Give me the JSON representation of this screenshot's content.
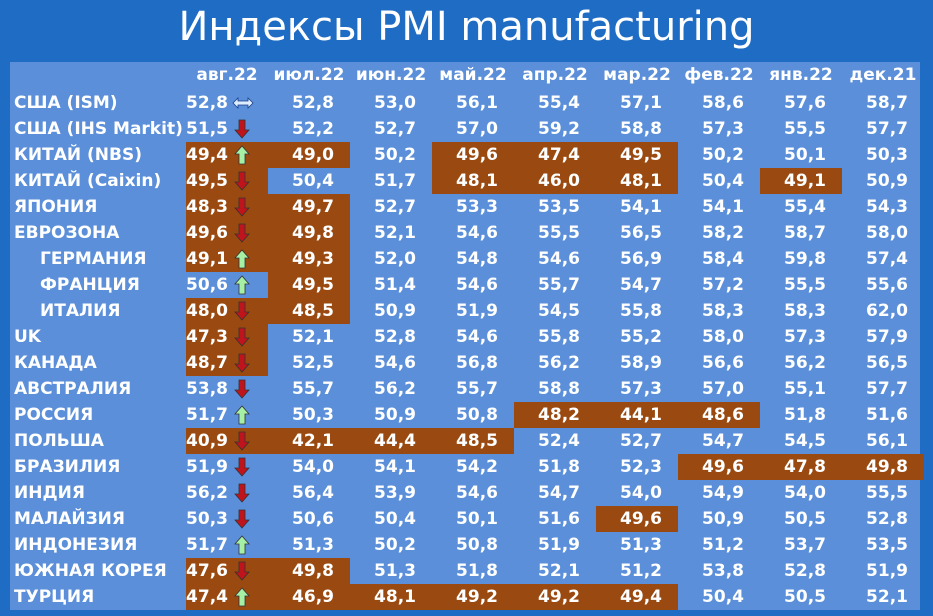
{
  "title": "Индексы PMI manufacturing",
  "table": {
    "columns": [
      "авг.22",
      "июл.22",
      "июн.22",
      "май.22",
      "апр.22",
      "мар.22",
      "фев.22",
      "янв.22",
      "дек.21"
    ],
    "rows": [
      {
        "name": "США (ISM)",
        "trend": "flat",
        "highlight": [],
        "values": [
          "52,8",
          "52,8",
          "53,0",
          "56,1",
          "55,4",
          "57,1",
          "58,6",
          "57,6",
          "58,7"
        ]
      },
      {
        "name": "США (IHS Markit)",
        "trend": "down",
        "highlight": [],
        "values": [
          "51,5",
          "52,2",
          "52,7",
          "57,0",
          "59,2",
          "58,8",
          "57,3",
          "55,5",
          "57,7"
        ]
      },
      {
        "name": "КИТАЙ (NBS)",
        "trend": "up",
        "highlight": [
          0,
          1,
          3,
          4,
          5
        ],
        "values": [
          "49,4",
          "49,0",
          "50,2",
          "49,6",
          "47,4",
          "49,5",
          "50,2",
          "50,1",
          "50,3"
        ]
      },
      {
        "name": "КИТАЙ (Caixin)",
        "trend": "down",
        "highlight": [
          0,
          3,
          4,
          5,
          7
        ],
        "values": [
          "49,5",
          "50,4",
          "51,7",
          "48,1",
          "46,0",
          "48,1",
          "50,4",
          "49,1",
          "50,9"
        ]
      },
      {
        "name": "ЯПОНИЯ",
        "trend": "down",
        "highlight": [
          0,
          1
        ],
        "values": [
          "48,3",
          "49,7",
          "52,7",
          "53,3",
          "53,5",
          "54,1",
          "54,1",
          "55,4",
          "54,3"
        ]
      },
      {
        "name": "ЕВРОЗОНА",
        "trend": "down",
        "highlight": [
          0,
          1
        ],
        "values": [
          "49,6",
          "49,8",
          "52,1",
          "54,6",
          "55,5",
          "56,5",
          "58,2",
          "58,7",
          "58,0"
        ]
      },
      {
        "name": "ГЕРМАНИЯ",
        "indent": true,
        "trend": "up",
        "highlight": [
          0,
          1
        ],
        "values": [
          "49,1",
          "49,3",
          "52,0",
          "54,8",
          "54,6",
          "56,9",
          "58,4",
          "59,8",
          "57,4"
        ]
      },
      {
        "name": "ФРАНЦИЯ",
        "indent": true,
        "trend": "up",
        "highlight": [
          1
        ],
        "values": [
          "50,6",
          "49,5",
          "51,4",
          "54,6",
          "55,7",
          "54,7",
          "57,2",
          "55,5",
          "55,6"
        ]
      },
      {
        "name": "ИТАЛИЯ",
        "indent": true,
        "trend": "down",
        "highlight": [
          0,
          1
        ],
        "values": [
          "48,0",
          "48,5",
          "50,9",
          "51,9",
          "54,5",
          "55,8",
          "58,3",
          "58,3",
          "62,0"
        ]
      },
      {
        "name": "UK",
        "trend": "down",
        "highlight": [
          0
        ],
        "values": [
          "47,3",
          "52,1",
          "52,8",
          "54,6",
          "55,8",
          "55,2",
          "58,0",
          "57,3",
          "57,9"
        ]
      },
      {
        "name": "КАНАДА",
        "trend": "down",
        "highlight": [
          0
        ],
        "values": [
          "48,7",
          "52,5",
          "54,6",
          "56,8",
          "56,2",
          "58,9",
          "56,6",
          "56,2",
          "56,5"
        ]
      },
      {
        "name": "АВСТРАЛИЯ",
        "trend": "down",
        "highlight": [],
        "values": [
          "53,8",
          "55,7",
          "56,2",
          "55,7",
          "58,8",
          "57,3",
          "57,0",
          "55,1",
          "57,7"
        ]
      },
      {
        "name": "РОССИЯ",
        "trend": "up",
        "highlight": [
          4,
          5,
          6
        ],
        "values": [
          "51,7",
          "50,3",
          "50,9",
          "50,8",
          "48,2",
          "44,1",
          "48,6",
          "51,8",
          "51,6"
        ]
      },
      {
        "name": "ПОЛЬША",
        "trend": "down",
        "highlight": [
          0,
          1,
          2,
          3
        ],
        "values": [
          "40,9",
          "42,1",
          "44,4",
          "48,5",
          "52,4",
          "52,7",
          "54,7",
          "54,5",
          "56,1"
        ]
      },
      {
        "name": "БРАЗИЛИЯ",
        "trend": "down",
        "highlight": [
          6,
          7,
          8
        ],
        "values": [
          "51,9",
          "54,0",
          "54,1",
          "54,2",
          "51,8",
          "52,3",
          "49,6",
          "47,8",
          "49,8"
        ]
      },
      {
        "name": "ИНДИЯ",
        "trend": "down",
        "highlight": [],
        "values": [
          "56,2",
          "56,4",
          "53,9",
          "54,6",
          "54,7",
          "54,0",
          "54,9",
          "54,0",
          "55,5"
        ]
      },
      {
        "name": "МАЛАЙЗИЯ",
        "trend": "down",
        "highlight": [
          5
        ],
        "values": [
          "50,3",
          "50,6",
          "50,4",
          "50,1",
          "51,6",
          "49,6",
          "50,9",
          "50,5",
          "52,8"
        ]
      },
      {
        "name": "ИНДОНЕЗИЯ",
        "trend": "up",
        "highlight": [],
        "values": [
          "51,7",
          "51,3",
          "50,2",
          "50,8",
          "51,9",
          "51,3",
          "51,2",
          "53,7",
          "53,5"
        ]
      },
      {
        "name": "ЮЖНАЯ КОРЕЯ",
        "trend": "down",
        "highlight": [
          0,
          1
        ],
        "values": [
          "47,6",
          "49,8",
          "51,3",
          "51,8",
          "52,1",
          "51,2",
          "53,8",
          "52,8",
          "51,9"
        ]
      },
      {
        "name": "ТУРЦИЯ",
        "trend": "up",
        "highlight": [
          0,
          1,
          2,
          3,
          4,
          5
        ],
        "values": [
          "47,4",
          "46,9",
          "48,1",
          "49,2",
          "49,2",
          "49,4",
          "50,4",
          "50,5",
          "52,1"
        ]
      }
    ]
  }
}
